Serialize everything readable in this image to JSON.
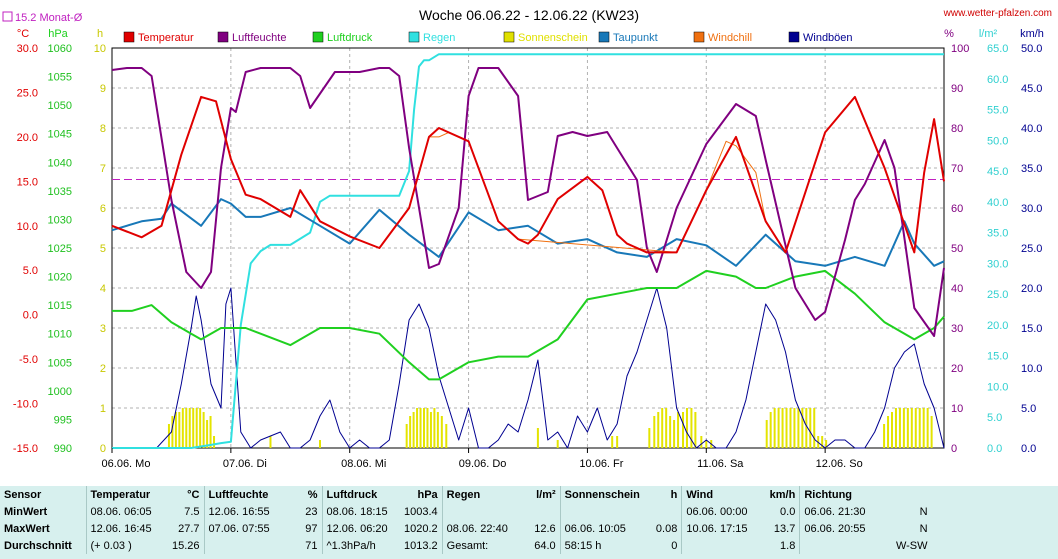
{
  "header": {
    "title": "Woche 06.06.22 - 12.06.22 (KW23)",
    "site": "www.wetter-pfalzen.com",
    "monthly_avg": "15.2 Monat-Ø"
  },
  "axes": {
    "left_units": [
      "°C",
      "hPa",
      "h"
    ],
    "right_units": [
      "%",
      "l/m²",
      "km/h"
    ],
    "temp_ticks": [
      "30.0",
      "25.0",
      "20.0",
      "15.0",
      "10.0",
      "5.0",
      "0.0",
      "-5.0",
      "-10.0",
      "-15.0"
    ],
    "press_ticks": [
      "1060",
      "1055",
      "1050",
      "1045",
      "1040",
      "1035",
      "1030",
      "1025",
      "1020",
      "1015",
      "1010",
      "1005",
      "1000",
      "995",
      "990"
    ],
    "sun_ticks": [
      "10",
      "9",
      "8",
      "7",
      "6",
      "5",
      "4",
      "3",
      "2",
      "1",
      "0"
    ],
    "hum_ticks": [
      "100",
      "90",
      "80",
      "70",
      "60",
      "50",
      "40",
      "30",
      "20",
      "10",
      "0"
    ],
    "rain_ticks": [
      "65.0",
      "60.0",
      "55.0",
      "50.0",
      "45.0",
      "40.0",
      "35.0",
      "30.0",
      "25.0",
      "20.0",
      "15.0",
      "10.0",
      "5.0",
      "0.0"
    ],
    "wind_ticks": [
      "50.0",
      "45.0",
      "40.0",
      "35.0",
      "30.0",
      "25.0",
      "20.0",
      "15.0",
      "10.0",
      "5.0",
      "0.0"
    ],
    "x_ticks": [
      "06.06. Mo",
      "07.06. Di",
      "08.06. Mi",
      "09.06. Do",
      "10.06. Fr",
      "11.06. Sa",
      "12.06. So"
    ]
  },
  "legend": [
    {
      "label": "Temperatur",
      "color": "#e00000"
    },
    {
      "label": "Luftfeuchte",
      "color": "#800080"
    },
    {
      "label": "Luftdruck",
      "color": "#20d020"
    },
    {
      "label": "Regen",
      "color": "#30e0e0"
    },
    {
      "label": "Sonnenschein",
      "color": "#e0e000"
    },
    {
      "label": "Taupunkt",
      "color": "#1878b8"
    },
    {
      "label": "Windchill",
      "color": "#f07010"
    },
    {
      "label": "Windböen",
      "color": "#000090"
    }
  ],
  "chart_data": {
    "type": "line",
    "title": "Woche 06.06.22 - 12.06.22 (KW23)",
    "x_unit": "hours since 06.06. 00:00",
    "x_range": [
      0,
      168
    ],
    "x_ticks": [
      "06.06. Mo",
      "07.06. Di",
      "08.06. Mi",
      "09.06. Do",
      "10.06. Fr",
      "11.06. Sa",
      "12.06. So"
    ],
    "temp_range": [
      -15,
      30
    ],
    "pressure_range": [
      990,
      1060
    ],
    "sunshine_range": [
      0,
      10
    ],
    "humidity_range": [
      0,
      100
    ],
    "rain_range": [
      0,
      65
    ],
    "wind_range": [
      0,
      50
    ],
    "monthly_avg_temperature": 15.2,
    "series": [
      {
        "name": "Temperatur",
        "axis": "temp",
        "x": [
          0,
          6,
          10,
          14,
          18,
          21,
          24,
          27,
          30,
          36,
          38,
          42,
          48,
          54,
          60,
          64,
          66,
          72,
          78,
          82,
          84,
          86,
          90,
          96,
          99,
          102,
          104,
          108,
          114,
          120,
          126,
          132,
          136,
          144,
          150,
          156,
          162,
          164,
          166,
          168
        ],
        "y": [
          10.0,
          8.7,
          10.0,
          18.0,
          24.5,
          24.0,
          17.5,
          13.5,
          13.0,
          11.0,
          14.0,
          10.5,
          8.8,
          7.5,
          12.0,
          20.0,
          21.0,
          19.5,
          10.5,
          8.5,
          8.0,
          9.0,
          13.0,
          15.5,
          14.0,
          9.0,
          8.0,
          7.0,
          7.0,
          14.0,
          20.0,
          10.5,
          7.0,
          20.5,
          24.5,
          16.5,
          7.0,
          16.0,
          22.0,
          15.0
        ]
      },
      {
        "name": "Windchill",
        "axis": "temp",
        "x": [
          60,
          64,
          66,
          68,
          72,
          78,
          82,
          114,
          120,
          124,
          126,
          130,
          132
        ],
        "y": [
          12.0,
          20.0,
          20.0,
          20.5,
          19.5,
          10.5,
          8.5,
          7.0,
          14.0,
          19.5,
          19.0,
          16.0,
          10.5
        ]
      },
      {
        "name": "Taupunkt",
        "axis": "temp",
        "x": [
          0,
          6,
          10,
          12,
          18,
          22,
          24,
          27,
          30,
          36,
          42,
          48,
          54,
          60,
          66,
          72,
          78,
          84,
          90,
          96,
          102,
          108,
          114,
          120,
          126,
          132,
          138,
          144,
          150,
          156,
          160,
          162,
          166,
          168
        ],
        "y": [
          9.5,
          10.5,
          10.8,
          12.5,
          10.0,
          13.0,
          12.5,
          11.0,
          11.0,
          12.0,
          10.0,
          8.0,
          11.8,
          9.0,
          6.5,
          11.5,
          9.5,
          10.0,
          8.0,
          8.5,
          7.0,
          6.5,
          8.5,
          7.8,
          5.5,
          9.0,
          6.0,
          5.5,
          6.5,
          5.5,
          10.5,
          8.0,
          5.5,
          6.0
        ]
      },
      {
        "name": "Luftfeuchte",
        "axis": "humidity",
        "x": [
          0,
          3,
          6,
          8,
          12,
          15,
          18,
          20,
          22,
          24,
          25,
          27,
          30,
          33,
          36,
          38,
          40,
          45,
          50,
          54,
          56,
          58,
          60,
          64,
          66,
          70,
          72,
          74,
          78,
          82,
          84,
          88,
          90,
          93,
          96,
          100,
          102,
          106,
          108,
          110,
          114,
          120,
          126,
          130,
          132,
          138,
          142,
          144,
          148,
          150,
          152,
          156,
          158,
          162,
          166,
          168
        ],
        "y": [
          94.5,
          95,
          95,
          93,
          62,
          44,
          40,
          44,
          70,
          85,
          84,
          94,
          95,
          95,
          95,
          93,
          85,
          94,
          94,
          95,
          95,
          93,
          75,
          45,
          46,
          60,
          88,
          95,
          95,
          88,
          62,
          64,
          78,
          79,
          78,
          79,
          75,
          67,
          50,
          44,
          60,
          76,
          86,
          83,
          72,
          40,
          32,
          34,
          52,
          62,
          66,
          77,
          70,
          35,
          28,
          45
        ]
      },
      {
        "name": "Luftdruck",
        "axis": "pressure",
        "x": [
          0,
          4,
          8,
          12,
          16,
          18,
          22,
          24,
          27,
          30,
          36,
          42,
          48,
          54,
          60,
          64,
          66,
          72,
          78,
          84,
          90,
          96,
          102,
          108,
          114,
          120,
          126,
          130,
          132,
          138,
          144,
          150,
          156,
          162,
          166,
          168
        ],
        "y": [
          1014,
          1014,
          1015,
          1012,
          1010,
          1009,
          1011,
          1011,
          1011,
          1010,
          1008,
          1011,
          1011,
          1010,
          1005,
          1002,
          1002,
          1005,
          1006,
          1006,
          1009,
          1016,
          1017,
          1018,
          1018,
          1021,
          1020,
          1018,
          1018,
          1020,
          1021,
          1017,
          1012,
          1009,
          1011,
          1013
        ]
      },
      {
        "name": "Regen",
        "axis": "rain",
        "x": [
          0,
          16,
          20,
          22,
          24,
          26,
          28,
          30,
          32,
          36,
          40,
          42,
          44,
          48,
          58,
          60,
          61,
          62,
          63,
          64,
          66,
          70,
          72,
          168
        ],
        "y": [
          0,
          0,
          0.5,
          0.8,
          1.0,
          20,
          30,
          32,
          33,
          33,
          35,
          40,
          41,
          41,
          41,
          45,
          55,
          62,
          63,
          63,
          64,
          64,
          64,
          64
        ]
      },
      {
        "name": "Windböen",
        "axis": "wind",
        "x": [
          0,
          6,
          9,
          12,
          14,
          16,
          17,
          18,
          20,
          22,
          23,
          24,
          26,
          28,
          30,
          34,
          36,
          38,
          40,
          42,
          44,
          46,
          48,
          50,
          52,
          54,
          56,
          58,
          60,
          62,
          64,
          66,
          68,
          70,
          72,
          74,
          76,
          78,
          80,
          82,
          84,
          86,
          88,
          90,
          92,
          94,
          96,
          98,
          100,
          102,
          104,
          106,
          108,
          110,
          112,
          114,
          116,
          118,
          120,
          122,
          124,
          126,
          128,
          130,
          132,
          134,
          136,
          138,
          140,
          142,
          144,
          146,
          148,
          150,
          152,
          154,
          156,
          158,
          160,
          162,
          164,
          166,
          168
        ],
        "y": [
          0,
          0,
          0,
          2,
          8,
          15,
          19,
          16,
          8,
          5,
          18,
          20,
          2,
          0,
          1,
          2,
          0,
          0,
          1,
          4,
          6,
          2,
          0,
          1,
          0,
          0,
          1,
          8,
          16,
          18,
          15,
          9,
          5,
          1,
          5,
          0,
          0,
          1,
          3,
          2,
          6,
          11,
          1,
          2,
          0,
          4,
          2,
          5,
          1,
          3,
          9,
          12,
          16,
          20,
          15,
          5,
          2,
          0,
          1,
          0,
          0,
          2,
          6,
          12,
          18,
          16,
          12,
          6,
          3,
          1,
          0,
          1,
          1,
          0,
          0,
          2,
          5,
          10,
          12,
          13,
          8,
          5,
          0
        ]
      }
    ],
    "sunshine": {
      "name": "Sonnenschein",
      "axis": "sunshine",
      "x": [
        11.5,
        12.2,
        12.9,
        13.6,
        14.3,
        15.0,
        15.7,
        16.4,
        17.1,
        17.8,
        18.5,
        19.2,
        19.9,
        20.6,
        32,
        42,
        59.5,
        60.2,
        60.9,
        61.6,
        62.3,
        63.0,
        63.7,
        64.4,
        65.1,
        65.8,
        66.6,
        67.5,
        86,
        90,
        101,
        102,
        108.5,
        109.5,
        110.3,
        111.1,
        111.9,
        112.7,
        113.5,
        114.3,
        115.3,
        116.1,
        117.0,
        117.8,
        119,
        120,
        121,
        132.2,
        133,
        133.8,
        134.6,
        135.4,
        136.2,
        137.0,
        137.8,
        138.6,
        139.4,
        140.2,
        141,
        141.8,
        142.6,
        143.4,
        144.2,
        155.9,
        156.7,
        157.5,
        158.3,
        159.1,
        159.9,
        160.7,
        161.5,
        162.3,
        163.1,
        163.9,
        164.7,
        165.5
      ],
      "y": [
        0.6,
        0.8,
        0.9,
        0.9,
        1.0,
        1.0,
        1.0,
        1.0,
        1.0,
        1.0,
        0.9,
        0.7,
        0.8,
        0.3,
        0.3,
        0.2,
        0.6,
        0.8,
        0.9,
        1.0,
        1.0,
        1.0,
        1.0,
        0.9,
        1.0,
        0.9,
        0.8,
        0.6,
        0.5,
        0.2,
        0.3,
        0.3,
        0.5,
        0.8,
        0.9,
        1.0,
        1.0,
        0.8,
        0.7,
        0.9,
        0.9,
        1.0,
        1.0,
        0.9,
        0.3,
        0.2,
        0.2,
        0.7,
        0.9,
        1.0,
        1.0,
        1.0,
        1.0,
        1.0,
        1.0,
        1.0,
        1.0,
        1.0,
        1.0,
        1.0,
        0.3,
        0.3,
        0.2,
        0.6,
        0.8,
        0.9,
        1.0,
        1.0,
        1.0,
        1.0,
        1.0,
        1.0,
        1.0,
        1.0,
        1.0,
        0.8
      ]
    }
  },
  "stats": {
    "headers": [
      {
        "name": "Sensor",
        "unit": ""
      },
      {
        "name": "Temperatur",
        "unit": "°C"
      },
      {
        "name": "Luftfeuchte",
        "unit": "%"
      },
      {
        "name": "Luftdruck",
        "unit": "hPa"
      },
      {
        "name": "Regen",
        "unit": "l/m²"
      },
      {
        "name": "Sonnenschein",
        "unit": "h"
      },
      {
        "name": "Wind",
        "unit": "km/h"
      },
      {
        "name": "Richtung",
        "unit": ""
      }
    ],
    "rows": [
      {
        "label": "MinWert",
        "cells": [
          [
            "08.06.  06:05",
            "7.5"
          ],
          [
            "12.06.  16:55",
            "23"
          ],
          [
            "08.06.  18:15",
            "1003.4"
          ],
          [
            "",
            ""
          ],
          [
            "",
            ""
          ],
          [
            "06.06.  00:00",
            "0.0"
          ],
          [
            "06.06.  21:30",
            "N"
          ]
        ]
      },
      {
        "label": "MaxWert",
        "cells": [
          [
            "12.06.  16:45",
            "27.7"
          ],
          [
            "07.06.  07:55",
            "97"
          ],
          [
            "12.06.  06:20",
            "1020.2"
          ],
          [
            "08.06.  22:40",
            "12.6"
          ],
          [
            "06.06.  10:05",
            "0.08"
          ],
          [
            "10.06.  17:15",
            "13.7"
          ],
          [
            "06.06.  20:55",
            "N"
          ]
        ]
      },
      {
        "label": "Durchschnitt",
        "cells": [
          [
            "(+ 0.03 )",
            "15.26"
          ],
          [
            "",
            "71"
          ],
          [
            "^1.3hPa/h",
            "1013.2"
          ],
          [
            "Gesamt:",
            "64.0"
          ],
          [
            "58:15 h",
            "0"
          ],
          [
            "",
            "1.8"
          ],
          [
            "",
            "W-SW"
          ]
        ]
      }
    ]
  }
}
